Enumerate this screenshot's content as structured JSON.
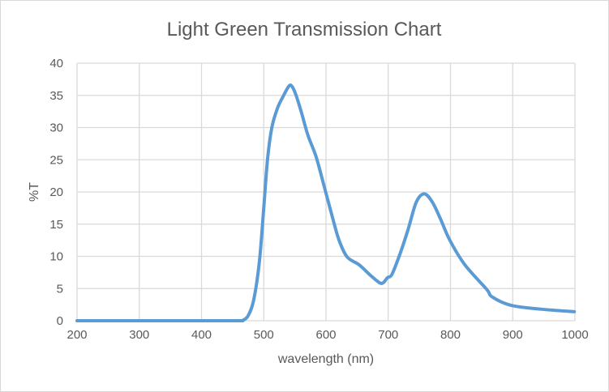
{
  "chart_data": {
    "type": "line",
    "title": "Light Green Transmission Chart",
    "xlabel": "wavelength (nm)",
    "ylabel": "%T",
    "xlim": [
      200,
      1000
    ],
    "ylim": [
      0,
      40
    ],
    "xticks": [
      200,
      300,
      400,
      500,
      600,
      700,
      800,
      900,
      1000
    ],
    "yticks": [
      0,
      5,
      10,
      15,
      20,
      25,
      30,
      35,
      40
    ],
    "grid": true,
    "legend": "none",
    "color": "#5B9BD5",
    "series": [
      {
        "x": [
          200,
          300,
          400,
          460,
          467,
          475,
          484,
          493,
          500,
          506,
          513,
          522,
          532,
          541,
          546,
          552,
          561,
          571,
          584,
          597,
          610,
          621,
          634,
          653,
          672,
          686,
          692,
          699,
          706,
          719,
          732,
          745,
          758,
          771,
          784,
          799,
          823,
          858,
          867,
          897,
          945,
          999
        ],
        "y": [
          0,
          0,
          0,
          0,
          0.1,
          0.8,
          3.3,
          9.2,
          17.5,
          25,
          30,
          33,
          35,
          36.5,
          36.3,
          35,
          32.2,
          28.8,
          25.5,
          20.9,
          16.2,
          12.5,
          9.9,
          8.7,
          7.0,
          5.9,
          5.9,
          6.7,
          7.2,
          10.4,
          14.2,
          18.4,
          19.7,
          18.4,
          15.8,
          12.5,
          8.7,
          4.9,
          3.7,
          2.4,
          1.8,
          1.4
        ]
      }
    ]
  }
}
